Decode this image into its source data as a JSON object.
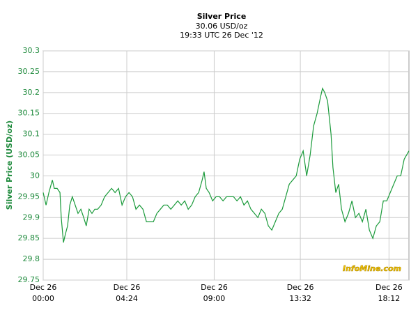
{
  "chart_data": {
    "type": "line",
    "title": "Silver Price",
    "subtitle": "30.06 USD/oz",
    "timestamp": "19:33 UTC 26 Dec '12",
    "y_label": "Silver Price (USD/oz)",
    "watermark": "InfoMine.com",
    "x": [
      0,
      9,
      18,
      29,
      35,
      44,
      53,
      57,
      64,
      70,
      77,
      84,
      92,
      101,
      110,
      119,
      128,
      136,
      145,
      154,
      163,
      172,
      183,
      194,
      205,
      216,
      227,
      238,
      249,
      260,
      271,
      282,
      293,
      304,
      315,
      326,
      337,
      348,
      359,
      370,
      381,
      392,
      403,
      414,
      425,
      436,
      447,
      458,
      469,
      480,
      491,
      502,
      508,
      515,
      524,
      535,
      546,
      557,
      568,
      579,
      590,
      601,
      612,
      623,
      634,
      645,
      656,
      667,
      678,
      689,
      700,
      711,
      722,
      733,
      744,
      755,
      766,
      777,
      788,
      799,
      810,
      821,
      832,
      843,
      854,
      865,
      876,
      882,
      889,
      898,
      909,
      915,
      924,
      933,
      942,
      953,
      964,
      975,
      986,
      997,
      1008,
      1019,
      1030,
      1041,
      1052,
      1063,
      1074,
      1085,
      1096,
      1107,
      1118,
      1129,
      1140,
      1155
    ],
    "series": [
      {
        "name": "Silver Price",
        "color": "#1a9a3a",
        "values": [
          29.96,
          29.93,
          29.96,
          29.99,
          29.97,
          29.97,
          29.96,
          29.9,
          29.84,
          29.86,
          29.88,
          29.93,
          29.95,
          29.93,
          29.91,
          29.92,
          29.9,
          29.88,
          29.92,
          29.91,
          29.92,
          29.92,
          29.93,
          29.95,
          29.96,
          29.97,
          29.96,
          29.97,
          29.93,
          29.95,
          29.96,
          29.95,
          29.92,
          29.93,
          29.92,
          29.89,
          29.89,
          29.89,
          29.91,
          29.92,
          29.93,
          29.93,
          29.92,
          29.93,
          29.94,
          29.93,
          29.94,
          29.92,
          29.93,
          29.95,
          29.96,
          29.99,
          30.01,
          29.97,
          29.96,
          29.94,
          29.95,
          29.95,
          29.94,
          29.95,
          29.95,
          29.95,
          29.94,
          29.95,
          29.93,
          29.94,
          29.92,
          29.91,
          29.9,
          29.92,
          29.91,
          29.88,
          29.87,
          29.89,
          29.91,
          29.92,
          29.95,
          29.98,
          29.99,
          30.0,
          30.04,
          30.06,
          30.0,
          30.05,
          30.12,
          30.15,
          30.19,
          30.21,
          30.2,
          30.18,
          30.1,
          30.02,
          29.96,
          29.98,
          29.92,
          29.89,
          29.91,
          29.94,
          29.9,
          29.91,
          29.89,
          29.92,
          29.87,
          29.85,
          29.88,
          29.89,
          29.94,
          29.94,
          29.96,
          29.98,
          30.0,
          30.0,
          30.04,
          30.06
        ]
      }
    ],
    "xlim": [
      0,
      1155
    ],
    "xticks": [
      {
        "value": 0,
        "label": "Dec 26\n00:00"
      },
      {
        "value": 264,
        "label": "Dec 26\n04:24"
      },
      {
        "value": 540,
        "label": "Dec 26\n09:00"
      },
      {
        "value": 812,
        "label": "Dec 26\n13:32"
      },
      {
        "value": 1092,
        "label": "Dec 26\n18:12"
      }
    ],
    "ylim": [
      29.75,
      30.3
    ],
    "yticks": [
      29.75,
      29.8,
      29.85,
      29.9,
      29.95,
      30,
      30.05,
      30.1,
      30.15,
      30.2,
      30.25,
      30.3
    ],
    "grid": true
  }
}
